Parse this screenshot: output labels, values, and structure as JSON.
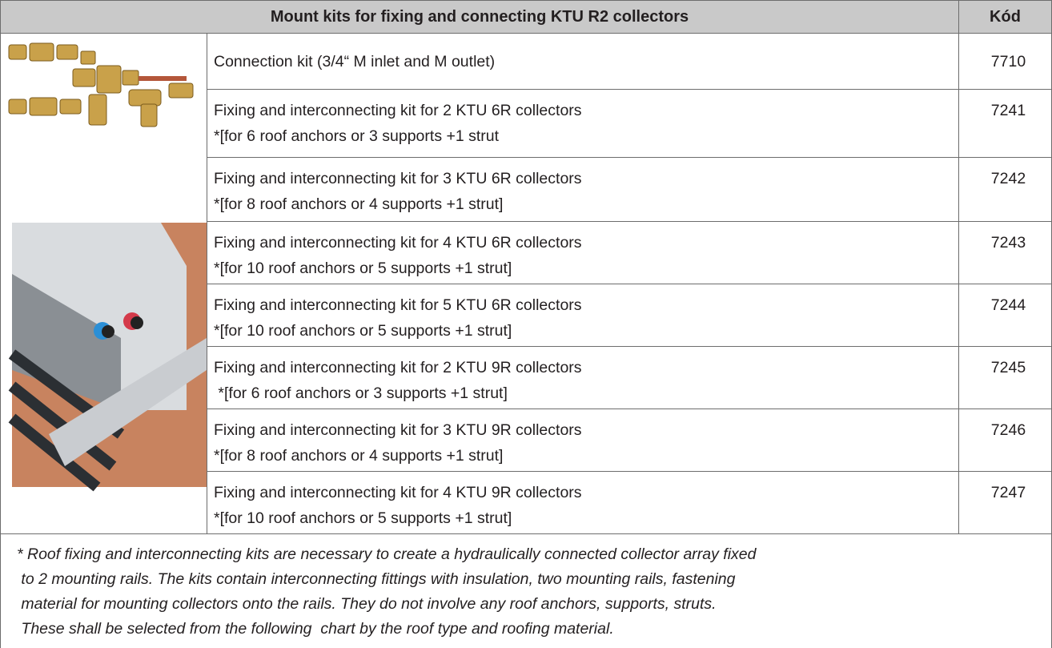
{
  "header": {
    "title": "Mount kits for fixing and connecting KTU R2 collectors",
    "code_label": "Kód"
  },
  "rows": [
    {
      "description": [
        "Connection kit (3/4“ M inlet and M outlet)"
      ],
      "code": "7710"
    },
    {
      "description": [
        "Fixing and interconnecting kit for 2 KTU 6R collectors",
        "*[for 6 roof anchors or 3 supports +1 strut"
      ],
      "code": "7241"
    },
    {
      "description": [
        "Fixing and interconnecting kit for 3 KTU 6R collectors",
        "*[for 8 roof anchors or 4 supports +1 strut]"
      ],
      "code": "7242"
    },
    {
      "description": [
        "Fixing and interconnecting kit for 4 KTU 6R collectors",
        "*[for 10 roof anchors or 5 supports +1 strut]"
      ],
      "code": "7243"
    },
    {
      "description": [
        "Fixing and interconnecting kit for 5 KTU 6R collectors",
        "*[for 10 roof anchors or 5 supports +1 strut]"
      ],
      "code": "7244"
    },
    {
      "description": [
        "Fixing and interconnecting kit for 2 KTU 9R collectors",
        " *[for 6 roof anchors or 3 supports +1 strut]"
      ],
      "code": "7245"
    },
    {
      "description": [
        "Fixing and interconnecting kit for 3 KTU 9R collectors",
        "*[for 8 roof anchors or 4 supports +1 strut]"
      ],
      "code": "7246"
    },
    {
      "description": [
        "Fixing and interconnecting kit for 4 KTU 9R collectors",
        "*[for 10 roof anchors or 5 supports +1 strut]"
      ],
      "code": "7247"
    }
  ],
  "footnote": [
    "* Roof fixing and interconnecting kits are necessary to create a hydraulically connected collector array fixed",
    " to 2 mounting rails. The kits contain interconnecting fittings with insulation, two mounting rails, fastening",
    " material for mounting collectors onto the rails. They do not involve any roof anchors, supports, struts.",
    " These shall be selected from the following  chart by the roof type and roofing material."
  ]
}
